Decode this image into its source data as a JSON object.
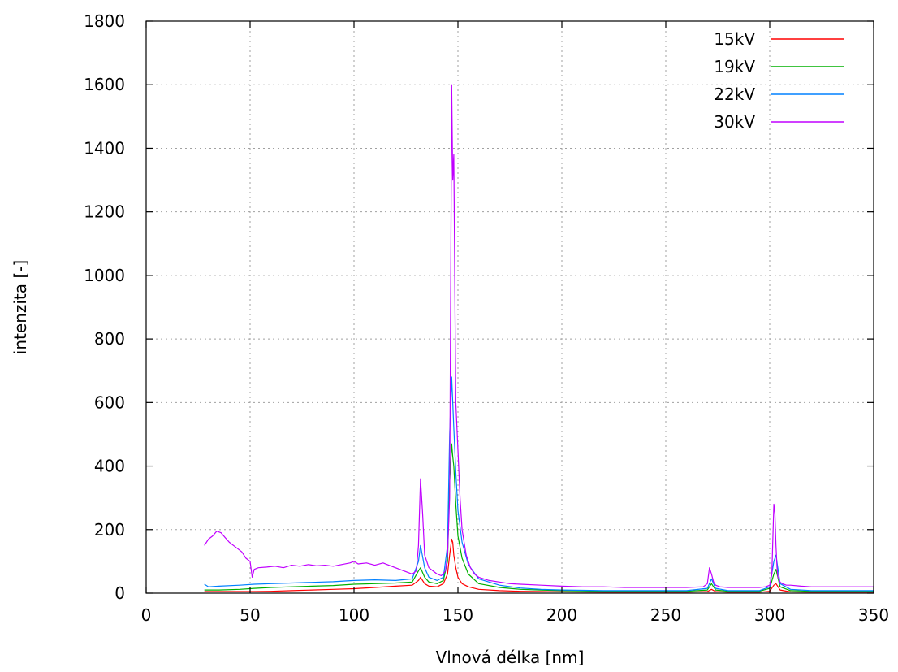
{
  "chart_data": {
    "type": "line",
    "xlabel": "Vlnová délka [nm]",
    "ylabel": "intenzita [-]",
    "xlim": [
      0,
      350
    ],
    "ylim": [
      0,
      1800
    ],
    "xticks": [
      0,
      50,
      100,
      150,
      200,
      250,
      300,
      350
    ],
    "yticks": [
      0,
      200,
      400,
      600,
      800,
      1000,
      1200,
      1400,
      1600,
      1800
    ],
    "grid": true,
    "legend_position": "top-right",
    "series": [
      {
        "name": "15kV",
        "color": "#ff0000",
        "x": [
          28,
          35,
          45,
          52,
          60,
          70,
          80,
          90,
          100,
          110,
          120,
          128,
          131,
          132,
          134,
          136,
          140,
          143,
          145,
          146,
          147,
          147.5,
          148,
          149,
          150,
          152,
          155,
          160,
          170,
          180,
          190,
          200,
          220,
          240,
          260,
          270,
          272,
          274,
          280,
          295,
          300,
          302,
          303,
          305,
          310,
          320,
          330,
          340,
          350
        ],
        "y": [
          5,
          5,
          5,
          5,
          6,
          8,
          10,
          12,
          14,
          18,
          22,
          25,
          40,
          50,
          30,
          22,
          20,
          30,
          60,
          120,
          170,
          160,
          120,
          80,
          50,
          30,
          20,
          12,
          8,
          6,
          5,
          4,
          3,
          3,
          3,
          5,
          12,
          5,
          3,
          3,
          6,
          25,
          30,
          10,
          4,
          3,
          3,
          3,
          3
        ]
      },
      {
        "name": "19kV",
        "color": "#00b000",
        "x": [
          28,
          35,
          45,
          52,
          60,
          70,
          80,
          90,
          100,
          110,
          120,
          128,
          131,
          132,
          134,
          136,
          140,
          143,
          145,
          146,
          147,
          147.5,
          148,
          149,
          150,
          152,
          155,
          160,
          170,
          180,
          190,
          200,
          220,
          240,
          260,
          270,
          272,
          274,
          280,
          295,
          300,
          302,
          303,
          305,
          310,
          320,
          330,
          340,
          350
        ],
        "y": [
          10,
          10,
          12,
          15,
          18,
          20,
          22,
          24,
          28,
          30,
          32,
          35,
          70,
          80,
          50,
          35,
          30,
          40,
          100,
          350,
          470,
          430,
          400,
          280,
          180,
          110,
          60,
          30,
          18,
          12,
          10,
          8,
          6,
          6,
          6,
          10,
          30,
          10,
          6,
          6,
          15,
          60,
          75,
          20,
          8,
          6,
          6,
          5,
          5
        ]
      },
      {
        "name": "22kV",
        "color": "#0080ff",
        "x": [
          28,
          30,
          35,
          45,
          52,
          60,
          70,
          80,
          90,
          100,
          110,
          120,
          128,
          131,
          132,
          134,
          136,
          140,
          143,
          145,
          146,
          147,
          147.5,
          148,
          149,
          150,
          152,
          155,
          160,
          170,
          180,
          190,
          200,
          220,
          240,
          260,
          270,
          272,
          274,
          280,
          295,
          300,
          302,
          303,
          305,
          310,
          320,
          330,
          340,
          350
        ],
        "y": [
          28,
          20,
          22,
          25,
          28,
          30,
          32,
          34,
          36,
          40,
          42,
          40,
          45,
          100,
          150,
          80,
          50,
          40,
          50,
          150,
          500,
          680,
          600,
          520,
          380,
          260,
          160,
          90,
          45,
          25,
          16,
          12,
          10,
          8,
          8,
          8,
          15,
          45,
          15,
          8,
          8,
          20,
          100,
          120,
          30,
          12,
          8,
          8,
          8,
          8
        ]
      },
      {
        "name": "30kV",
        "color": "#c000ff",
        "x": [
          28,
          30,
          32,
          34,
          36,
          38,
          40,
          42,
          44,
          46,
          48,
          50,
          51,
          52,
          54,
          58,
          62,
          66,
          70,
          74,
          78,
          82,
          86,
          90,
          94,
          98,
          100,
          102,
          106,
          110,
          114,
          118,
          122,
          126,
          128,
          130,
          131,
          132,
          133,
          134,
          136,
          138,
          140,
          142,
          144,
          145,
          146,
          146.5,
          147,
          147.5,
          148,
          148.5,
          149,
          150,
          151,
          152,
          154,
          156,
          158,
          160,
          165,
          170,
          175,
          180,
          190,
          200,
          210,
          220,
          230,
          240,
          250,
          260,
          268,
          270,
          271,
          272,
          273,
          274,
          276,
          280,
          290,
          295,
          298,
          300,
          301,
          302,
          302.5,
          303,
          303.5,
          304,
          305,
          306,
          308,
          310,
          315,
          320,
          330,
          340,
          350
        ],
        "y": [
          150,
          170,
          180,
          195,
          190,
          175,
          160,
          150,
          140,
          130,
          110,
          100,
          50,
          75,
          80,
          82,
          85,
          80,
          88,
          85,
          90,
          86,
          88,
          85,
          90,
          95,
          100,
          92,
          95,
          88,
          95,
          85,
          75,
          65,
          60,
          70,
          150,
          360,
          250,
          120,
          80,
          70,
          60,
          55,
          70,
          120,
          300,
          900,
          1600,
          1300,
          1380,
          950,
          600,
          450,
          300,
          200,
          120,
          80,
          60,
          50,
          40,
          35,
          30,
          28,
          25,
          22,
          20,
          20,
          18,
          18,
          18,
          18,
          20,
          30,
          80,
          60,
          35,
          25,
          20,
          18,
          18,
          18,
          20,
          25,
          60,
          280,
          250,
          150,
          80,
          50,
          35,
          30,
          25,
          25,
          22,
          20,
          20,
          20,
          20
        ]
      }
    ]
  }
}
